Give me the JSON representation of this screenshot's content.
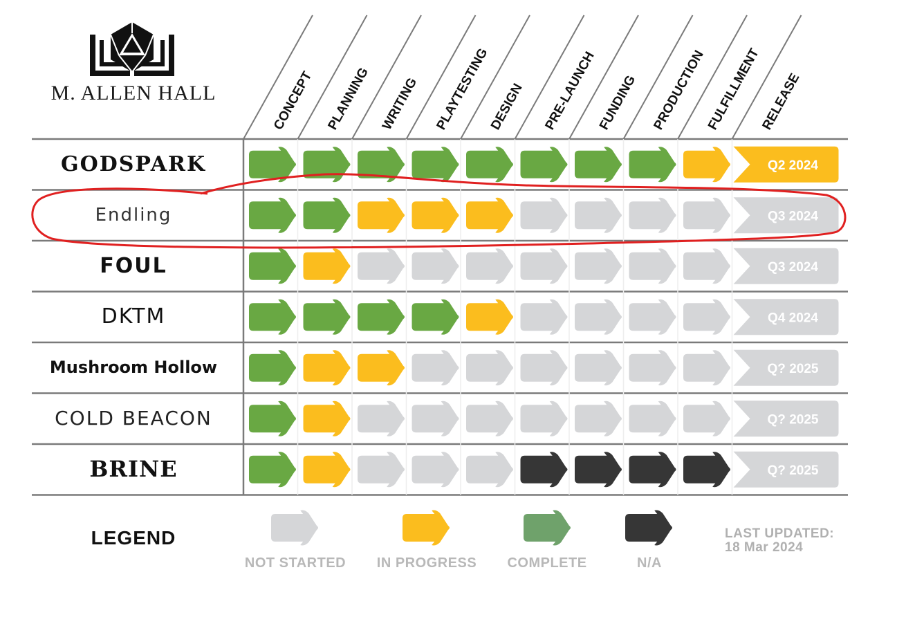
{
  "brand": {
    "name": "M. ALLEN HALL",
    "logo_icon": "d20-book-icon"
  },
  "legend": {
    "title": "LEGEND",
    "items": [
      {
        "label": "NOT STARTED",
        "color": "#d5d6d8"
      },
      {
        "label": "IN PROGRESS",
        "color": "#fbbd1e"
      },
      {
        "label": "COMPLETE",
        "color": "#6fa26b"
      },
      {
        "label": "N/A",
        "color": "#363636"
      }
    ]
  },
  "last_updated": {
    "label": "LAST UPDATED:",
    "date": "18 Mar 2024"
  },
  "colors": {
    "complete": "#69a843",
    "in_progress": "#fbbd1e",
    "not_started": "#d5d6d8",
    "na": "#363636",
    "grid": "#7a7a7a",
    "release_text": "#ffffff",
    "annotation": "#e02020"
  },
  "chart_data": {
    "type": "table",
    "columns": [
      "CONCEPT",
      "PLANNING",
      "WRITING",
      "PLAYTESTING",
      "DESIGN",
      "PRE-LAUNCH",
      "FUNDING",
      "PRODUCTION",
      "FULFILLMENT",
      "RELEASE"
    ],
    "status_legend": {
      "C": "complete",
      "P": "in progress",
      "N": "not started",
      "X": "n/a"
    },
    "rows": [
      {
        "project": "GODSPARK",
        "stages": [
          "C",
          "C",
          "C",
          "C",
          "C",
          "C",
          "C",
          "C",
          "P"
        ],
        "release": "Q2 2024",
        "release_status": "in progress"
      },
      {
        "project": "Endling",
        "stages": [
          "C",
          "C",
          "P",
          "P",
          "P",
          "N",
          "N",
          "N",
          "N"
        ],
        "release": "Q3 2024",
        "release_status": "not started",
        "highlighted": true
      },
      {
        "project": "FOUL",
        "stages": [
          "C",
          "P",
          "N",
          "N",
          "N",
          "N",
          "N",
          "N",
          "N"
        ],
        "release": "Q3 2024",
        "release_status": "not started"
      },
      {
        "project": "DKTM",
        "stages": [
          "C",
          "C",
          "C",
          "C",
          "P",
          "N",
          "N",
          "N",
          "N"
        ],
        "release": "Q4 2024",
        "release_status": "not started"
      },
      {
        "project": "Mushroom Hollow",
        "stages": [
          "C",
          "P",
          "P",
          "N",
          "N",
          "N",
          "N",
          "N",
          "N"
        ],
        "release": "Q? 2025",
        "release_status": "not started"
      },
      {
        "project": "COLD BEACON",
        "stages": [
          "C",
          "P",
          "N",
          "N",
          "N",
          "N",
          "N",
          "N",
          "N"
        ],
        "release": "Q? 2025",
        "release_status": "not started"
      },
      {
        "project": "BRINE",
        "stages": [
          "C",
          "P",
          "N",
          "N",
          "N",
          "X",
          "X",
          "X",
          "X"
        ],
        "release": "Q? 2025",
        "release_status": "not started"
      }
    ]
  }
}
